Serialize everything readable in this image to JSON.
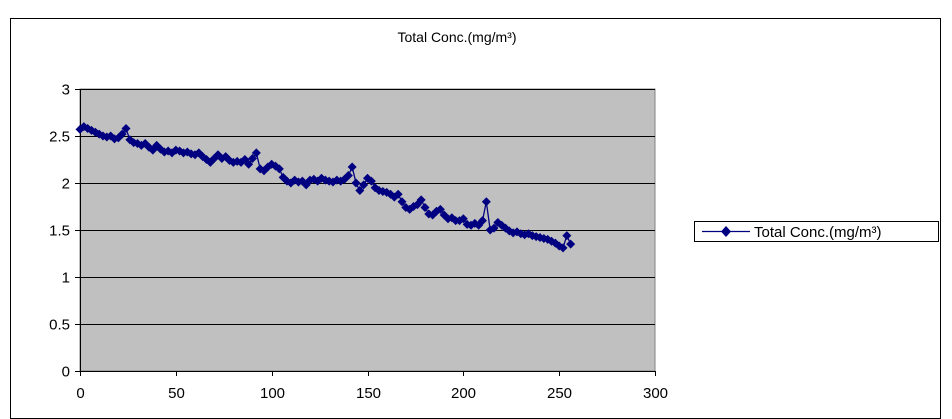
{
  "chart_data": {
    "type": "line",
    "title": "Total Conc.(mg/m³)",
    "xlabel": "",
    "ylabel": "",
    "xlim": [
      0,
      300
    ],
    "ylim": [
      0,
      3
    ],
    "x_ticks": [
      "0",
      "50",
      "100",
      "150",
      "200",
      "250",
      "300"
    ],
    "y_ticks": [
      "0",
      "0.5",
      "1",
      "1.5",
      "2",
      "2.5",
      "3"
    ],
    "grid": "horizontal",
    "plot_background": "#c0c0c0",
    "legend_position": "right",
    "series": [
      {
        "name": "Total Conc.(mg/m³)",
        "color": "#000080",
        "marker": "diamond",
        "x": [
          0,
          2,
          4,
          6,
          8,
          10,
          12,
          14,
          16,
          18,
          20,
          22,
          24,
          26,
          28,
          30,
          32,
          34,
          36,
          38,
          40,
          42,
          44,
          46,
          48,
          50,
          52,
          54,
          56,
          58,
          60,
          62,
          64,
          66,
          68,
          70,
          72,
          74,
          76,
          78,
          80,
          82,
          84,
          86,
          88,
          90,
          92,
          94,
          96,
          98,
          100,
          102,
          104,
          106,
          108,
          110,
          112,
          114,
          116,
          118,
          120,
          122,
          124,
          126,
          128,
          130,
          132,
          134,
          136,
          138,
          140,
          142,
          144,
          146,
          148,
          150,
          152,
          154,
          156,
          158,
          160,
          162,
          164,
          166,
          168,
          170,
          172,
          174,
          176,
          178,
          180,
          182,
          184,
          186,
          188,
          190,
          192,
          194,
          196,
          198,
          200,
          202,
          204,
          206,
          208,
          210,
          212,
          214,
          216,
          218,
          220,
          222,
          224,
          226,
          228,
          230,
          232,
          234,
          236,
          238,
          240,
          242,
          244,
          246,
          248,
          250,
          252,
          254,
          256
        ],
        "values": [
          2.57,
          2.6,
          2.58,
          2.56,
          2.54,
          2.52,
          2.5,
          2.49,
          2.5,
          2.47,
          2.48,
          2.52,
          2.58,
          2.46,
          2.43,
          2.42,
          2.4,
          2.42,
          2.38,
          2.35,
          2.4,
          2.36,
          2.33,
          2.34,
          2.32,
          2.35,
          2.34,
          2.32,
          2.33,
          2.31,
          2.3,
          2.32,
          2.28,
          2.25,
          2.22,
          2.26,
          2.3,
          2.26,
          2.28,
          2.24,
          2.22,
          2.23,
          2.22,
          2.25,
          2.2,
          2.26,
          2.32,
          2.15,
          2.13,
          2.17,
          2.2,
          2.18,
          2.15,
          2.06,
          2.02,
          2.0,
          2.03,
          2.01,
          2.02,
          1.98,
          2.03,
          2.04,
          2.02,
          2.05,
          2.03,
          2.02,
          2.01,
          2.03,
          2.02,
          2.04,
          2.08,
          2.17,
          2.0,
          1.92,
          1.98,
          2.05,
          2.02,
          1.95,
          1.92,
          1.91,
          1.9,
          1.88,
          1.85,
          1.88,
          1.8,
          1.74,
          1.72,
          1.75,
          1.77,
          1.82,
          1.74,
          1.67,
          1.66,
          1.7,
          1.72,
          1.66,
          1.62,
          1.63,
          1.6,
          1.6,
          1.62,
          1.56,
          1.55,
          1.57,
          1.55,
          1.6,
          1.8,
          1.5,
          1.52,
          1.58,
          1.55,
          1.52,
          1.49,
          1.47,
          1.48,
          1.46,
          1.45,
          1.46,
          1.44,
          1.43,
          1.42,
          1.41,
          1.4,
          1.38,
          1.36,
          1.33,
          1.31,
          1.44,
          1.35
        ]
      }
    ]
  }
}
